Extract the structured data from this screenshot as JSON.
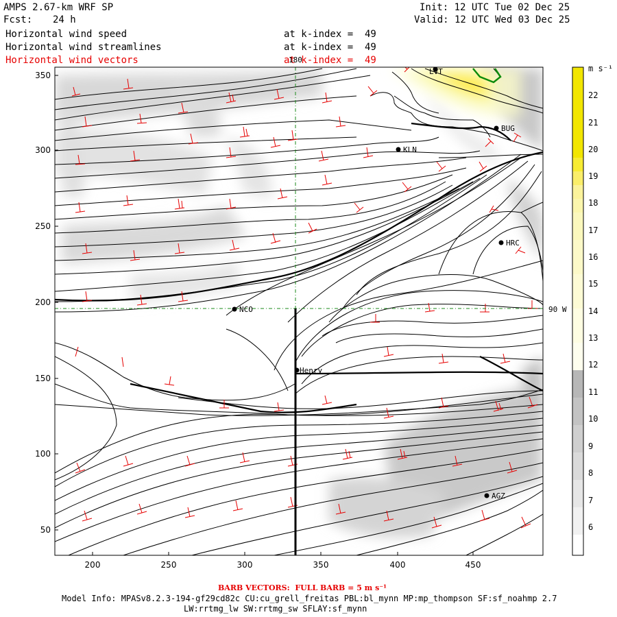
{
  "header": {
    "model": "AMPS 2.67-km WRF SP",
    "init": "Init: 12 UTC Tue 02 Dec 25",
    "fcst_label": "Fcst:",
    "fcst_value": "24 h",
    "valid": "Valid: 12 UTC Wed 03 Dec 25",
    "fields": [
      {
        "name": "Horizontal wind speed",
        "level": "at k-index =  49"
      },
      {
        "name": "Horizontal wind streamlines",
        "level": "at k-index =  49"
      },
      {
        "name": "Horizontal wind vectors",
        "level": "at k-index =  49"
      }
    ]
  },
  "map": {
    "x_ticks": [
      "200",
      "250",
      "300",
      "350",
      "400",
      "450"
    ],
    "y_ticks": [
      "350",
      "300",
      "250",
      "200",
      "150",
      "100",
      "50"
    ],
    "grid_labels": {
      "meridian": "180",
      "parallel": "90 W"
    },
    "stations": [
      "LVT",
      "BUG",
      "KLN",
      "HRC",
      "NCO",
      "Henry",
      "AGZ"
    ]
  },
  "colorbar": {
    "unit": "m s⁻¹",
    "labels": [
      "22",
      "21",
      "20",
      "19",
      "18",
      "17",
      "16",
      "15",
      "14",
      "13",
      "12",
      "11",
      "10",
      "9",
      "8",
      "7",
      "6"
    ],
    "colors": {
      "low": "#ffffff",
      "gray_high": "#b0b0b0",
      "yellow_high": "#f2e600",
      "pale_yellow": "#fbfbc9"
    }
  },
  "footer": {
    "barb": "BARB VECTORS:  FULL BARB = 5 m s⁻¹",
    "model_info": "Model Info: MPASv8.2.3-194-gf29cd82c CU:cu_grell_freitas PBL:bl_mynn MP:mp_thompson SF:sf_noahmp 2.7",
    "physics": "LW:rrtmg_lw SW:rrtmg_sw SFLAY:sf_mynn"
  }
}
